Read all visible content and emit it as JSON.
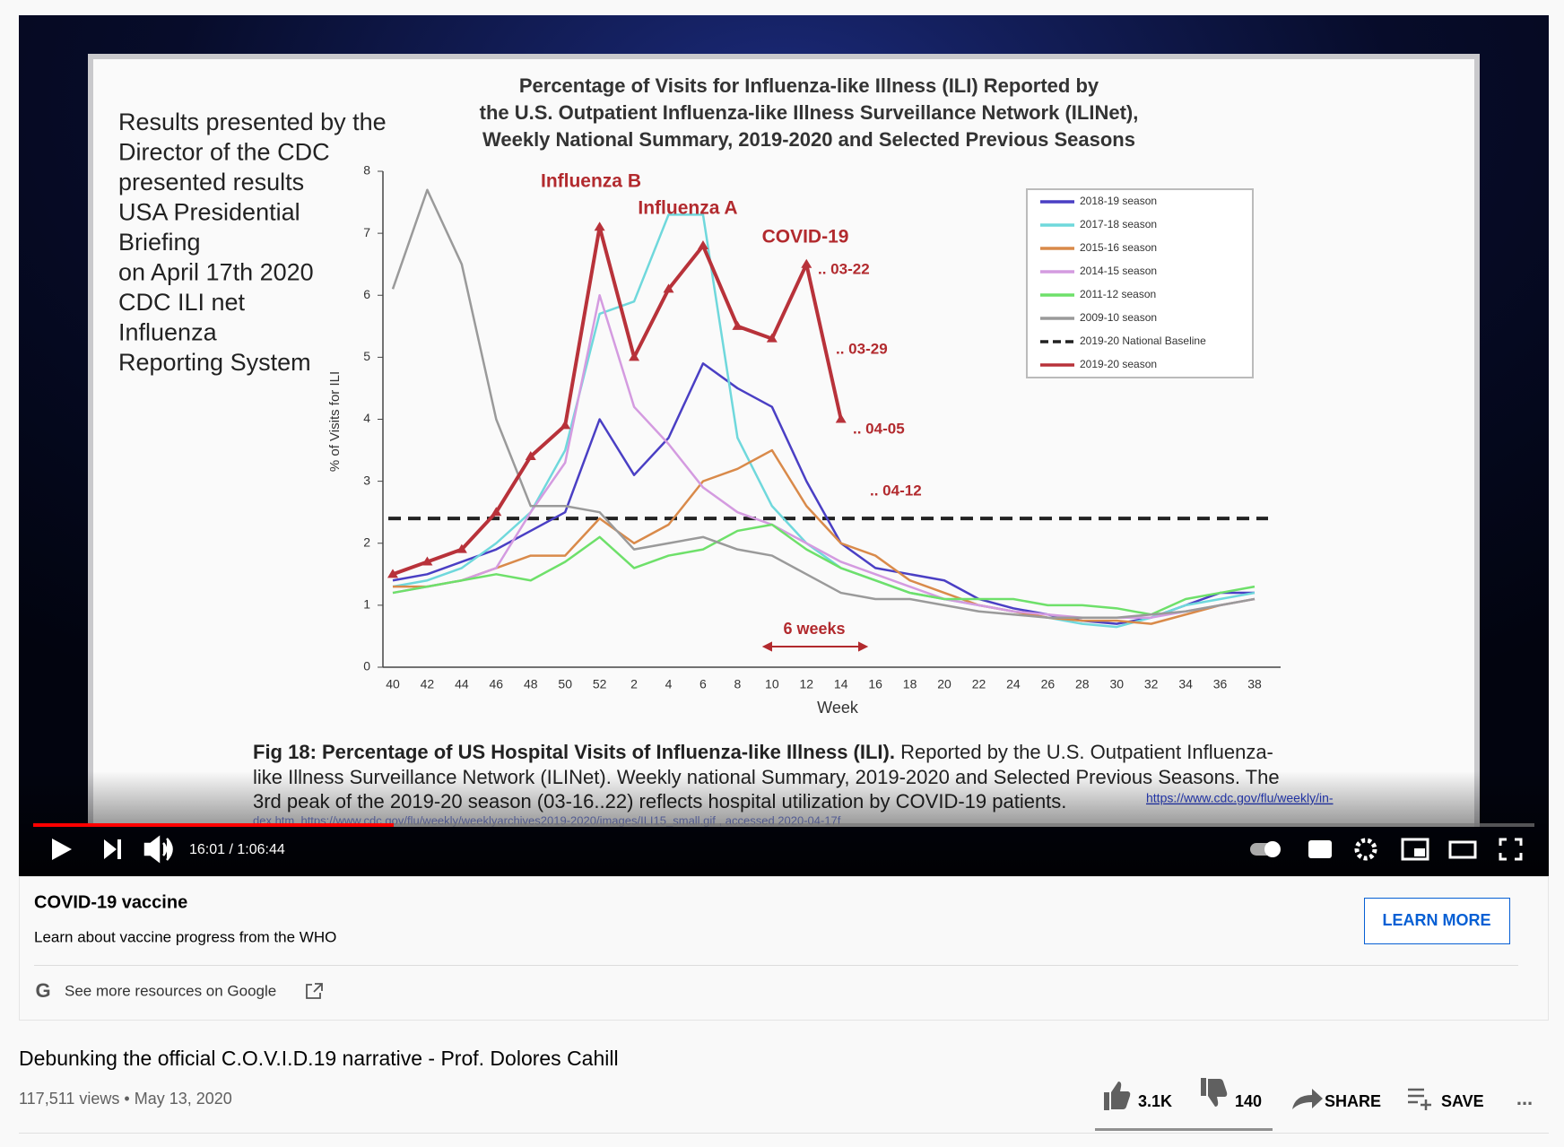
{
  "video": {
    "slide": {
      "side_text": [
        "Results presented by the",
        "Director of the CDC",
        "presented results",
        "USA Presidential",
        "Briefing",
        "on April 17th 2020",
        "CDC ILI net",
        "Influenza",
        "Reporting System"
      ],
      "chart_data": {
        "type": "line",
        "title": [
          "Percentage of Visits for Influenza-like Illness (ILI) Reported by",
          "the U.S. Outpatient Influenza-like Illness Surveillance Network (ILINet),",
          "Weekly National Summary, 2019-2020 and Selected Previous Seasons"
        ],
        "x_label": "Week",
        "y_label": "% of Visits for ILI",
        "ylim": [
          0,
          8
        ],
        "yticks": [
          0,
          1,
          2,
          3,
          4,
          5,
          6,
          7,
          8
        ],
        "categories": [
          "40",
          "42",
          "44",
          "46",
          "48",
          "50",
          "52",
          "2",
          "4",
          "6",
          "8",
          "10",
          "12",
          "14",
          "16",
          "18",
          "20",
          "22",
          "24",
          "26",
          "28",
          "30",
          "32",
          "34",
          "36",
          "38"
        ],
        "series": [
          {
            "name": "2018-19 season",
            "color": "#4a3fc4",
            "values": [
              1.4,
              1.5,
              1.7,
              1.9,
              2.2,
              2.5,
              4.0,
              3.1,
              3.7,
              4.9,
              4.5,
              4.2,
              3.0,
              2.0,
              1.6,
              1.5,
              1.4,
              1.1,
              0.95,
              0.85,
              0.75,
              0.7,
              0.8,
              1.0,
              1.2,
              1.2
            ]
          },
          {
            "name": "2017-18 season",
            "color": "#6fd8dc",
            "values": [
              1.3,
              1.4,
              1.6,
              2.0,
              2.5,
              3.5,
              5.7,
              5.9,
              7.3,
              7.3,
              3.7,
              2.6,
              2.0,
              1.6,
              1.4,
              1.2,
              1.1,
              1.0,
              0.9,
              0.8,
              0.7,
              0.65,
              0.8,
              1.0,
              1.1,
              1.2
            ]
          },
          {
            "name": "2015-16 season",
            "color": "#d98a4a",
            "values": [
              1.3,
              1.3,
              1.4,
              1.6,
              1.8,
              1.8,
              2.4,
              2.0,
              2.3,
              3.0,
              3.2,
              3.5,
              2.6,
              2.0,
              1.8,
              1.4,
              1.2,
              1.0,
              0.9,
              0.8,
              0.75,
              0.75,
              0.7,
              0.85,
              1.0,
              1.1
            ]
          },
          {
            "name": "2014-15 season",
            "color": "#d49be0",
            "values": [
              1.2,
              1.3,
              1.4,
              1.6,
              2.5,
              3.3,
              6.0,
              4.2,
              3.6,
              2.9,
              2.5,
              2.3,
              2.0,
              1.7,
              1.5,
              1.3,
              1.1,
              1.0,
              0.9,
              0.85,
              0.8,
              0.8,
              0.8,
              0.9,
              1.0,
              1.1
            ]
          },
          {
            "name": "2011-12 season",
            "color": "#6ee06a",
            "values": [
              1.2,
              1.3,
              1.4,
              1.5,
              1.4,
              1.7,
              2.1,
              1.6,
              1.8,
              1.9,
              2.2,
              2.3,
              1.9,
              1.6,
              1.4,
              1.2,
              1.1,
              1.1,
              1.1,
              1.0,
              1.0,
              0.95,
              0.85,
              1.1,
              1.2,
              1.3
            ]
          },
          {
            "name": "2009-10 season",
            "color": "#9a9a9a",
            "values": [
              6.1,
              7.7,
              6.5,
              4.0,
              2.6,
              2.6,
              2.5,
              1.9,
              2.0,
              2.1,
              1.9,
              1.8,
              1.5,
              1.2,
              1.1,
              1.1,
              1.0,
              0.9,
              0.85,
              0.8,
              0.8,
              0.8,
              0.85,
              0.9,
              1.0,
              1.1
            ]
          },
          {
            "name": "2019-20 season",
            "color": "#b8323a",
            "values": [
              1.5,
              1.7,
              1.9,
              2.5,
              3.4,
              3.9,
              7.1,
              5.0,
              6.1,
              6.8,
              5.5,
              5.3,
              6.5,
              4.0,
              null,
              null,
              null,
              null,
              null,
              null,
              null,
              null,
              null,
              null,
              null,
              null
            ]
          }
        ],
        "baseline": {
          "name": "2019-20 National Baseline",
          "color": "#222222",
          "value": 2.4
        },
        "annotations": [
          "Influenza B",
          "Influenza A",
          "COVID-19",
          "6 weeks"
        ],
        "point_labels": [
          ".. 03-22",
          ".. 03-29",
          ".. 04-05",
          ".. 04-12"
        ]
      },
      "caption": {
        "bold": "Fig 18: Percentage of US Hospital Visits of Influenza-like Illness (ILI).",
        "rest": " Reported by the U.S. Outpatient Influenza-",
        "lines": [
          "like Illness Surveillance Network (ILINet). Weekly national Summary, 2019-2020 and Selected Previous Seasons. The",
          "3rd peak of the 2019-20 season (03-16..22) reflects hospital utilization by COVID-19 patients."
        ],
        "link": "https://www.cdc.gov/flu/weekly/in-",
        "cut_line": "dex.htm, https://www.cdc.gov/flu/weekly/weeklyarchives2019-2020/images/ILI15_small.gif , accessed 2020-04-17f"
      }
    },
    "controls": {
      "time": "16:01 / 1:06:44"
    }
  },
  "info_panel": {
    "heading": "COVID-19 vaccine",
    "text": "Learn about vaccine progress from the WHO",
    "button": "LEARN MORE",
    "google_letter": "G",
    "more": "See more resources on Google"
  },
  "title": "Debunking the official C.O.V.I.D.19 narrative - Prof. Dolores Cahill",
  "meta": "117,511 views • May 13, 2020",
  "actions": {
    "likes": "3.1K",
    "dislikes": "140",
    "share": "SHARE",
    "save": "SAVE",
    "more": "..."
  }
}
